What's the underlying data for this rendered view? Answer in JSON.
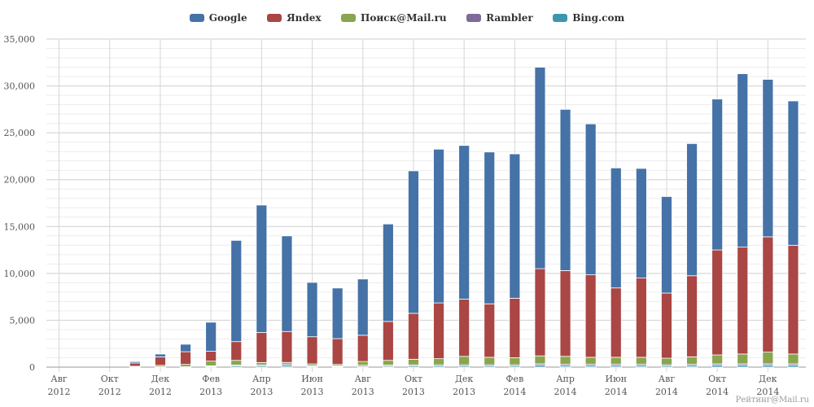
{
  "chart_data": {
    "type": "bar",
    "stacked": true,
    "legend_position": "top",
    "grid": true,
    "ylim": [
      0,
      35000
    ],
    "y_ticks": [
      "0",
      "5,000",
      "10,000",
      "15,000",
      "20,000",
      "25,000",
      "30,000",
      "35,000"
    ],
    "x_tick_labels": [
      {
        "month": "Авг",
        "year": "2012"
      },
      {
        "month": "Окт",
        "year": "2012"
      },
      {
        "month": "Дек",
        "year": "2012"
      },
      {
        "month": "Фев",
        "year": "2013"
      },
      {
        "month": "Апр",
        "year": "2013"
      },
      {
        "month": "Июн",
        "year": "2013"
      },
      {
        "month": "Авг",
        "year": "2013"
      },
      {
        "month": "Окт",
        "year": "2013"
      },
      {
        "month": "Дек",
        "year": "2013"
      },
      {
        "month": "Фев",
        "year": "2014"
      },
      {
        "month": "Апр",
        "year": "2014"
      },
      {
        "month": "Июн",
        "year": "2014"
      },
      {
        "month": "Авг",
        "year": "2014"
      },
      {
        "month": "Окт",
        "year": "2014"
      },
      {
        "month": "Дек",
        "year": "2014"
      }
    ],
    "categories": [
      "2012-08",
      "2012-09",
      "2012-10",
      "2012-11",
      "2012-12",
      "2013-01",
      "2013-02",
      "2013-03",
      "2013-04",
      "2013-05",
      "2013-06",
      "2013-07",
      "2013-08",
      "2013-09",
      "2013-10",
      "2013-11",
      "2013-12",
      "2014-01",
      "2014-02",
      "2014-03",
      "2014-04",
      "2014-05",
      "2014-06",
      "2014-07",
      "2014-08",
      "2014-09",
      "2014-10",
      "2014-11",
      "2014-12",
      "2015-01"
    ],
    "series": [
      {
        "name": "Google",
        "color": "#4572a7",
        "values": [
          0,
          0,
          0,
          150,
          300,
          800,
          3100,
          10800,
          13600,
          10200,
          5800,
          5400,
          6000,
          10400,
          15200,
          16400,
          16400,
          16200,
          15400,
          21500,
          17200,
          16100,
          12800,
          11700,
          10300,
          14100,
          16100,
          18500,
          16800,
          15400
        ]
      },
      {
        "name": "Яndex",
        "color": "#aa4643",
        "values": [
          0,
          0,
          0,
          350,
          900,
          1350,
          1050,
          2000,
          3200,
          3300,
          2900,
          2750,
          2800,
          4150,
          4900,
          5950,
          6100,
          5700,
          6350,
          9300,
          9150,
          8800,
          7400,
          8450,
          6950,
          8650,
          11200,
          11400,
          12300,
          11600
        ]
      },
      {
        "name": "Поиск@Mail.ru",
        "color": "#89a54e",
        "values": [
          0,
          0,
          0,
          50,
          150,
          250,
          500,
          500,
          250,
          200,
          180,
          150,
          400,
          500,
          600,
          650,
          900,
          800,
          750,
          850,
          850,
          750,
          750,
          750,
          700,
          800,
          950,
          1050,
          1250,
          1050
        ]
      },
      {
        "name": "Rambler",
        "color": "#80699b",
        "values": [
          0,
          0,
          0,
          40,
          40,
          40,
          60,
          100,
          120,
          150,
          80,
          70,
          120,
          120,
          120,
          130,
          130,
          130,
          130,
          150,
          150,
          150,
          150,
          150,
          130,
          150,
          150,
          150,
          150,
          150
        ]
      },
      {
        "name": "Bing.com",
        "color": "#3d96ae",
        "values": [
          0,
          0,
          0,
          0,
          0,
          0,
          80,
          120,
          120,
          150,
          80,
          70,
          80,
          100,
          120,
          120,
          120,
          120,
          120,
          200,
          150,
          150,
          150,
          150,
          120,
          150,
          200,
          200,
          200,
          200
        ]
      }
    ],
    "credit": "Рейтинг@Mail.ru"
  }
}
